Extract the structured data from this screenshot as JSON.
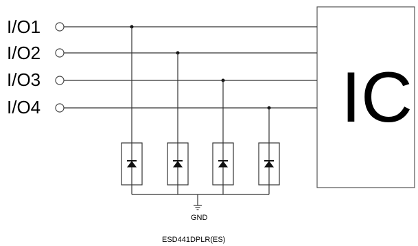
{
  "pins": [
    {
      "label": "I/O1"
    },
    {
      "label": "I/O2"
    },
    {
      "label": "I/O3"
    },
    {
      "label": "I/O4"
    }
  ],
  "ic": {
    "label": "IC"
  },
  "ground": {
    "label": "GND"
  },
  "part_number": "ESD441DPLR(ES)"
}
